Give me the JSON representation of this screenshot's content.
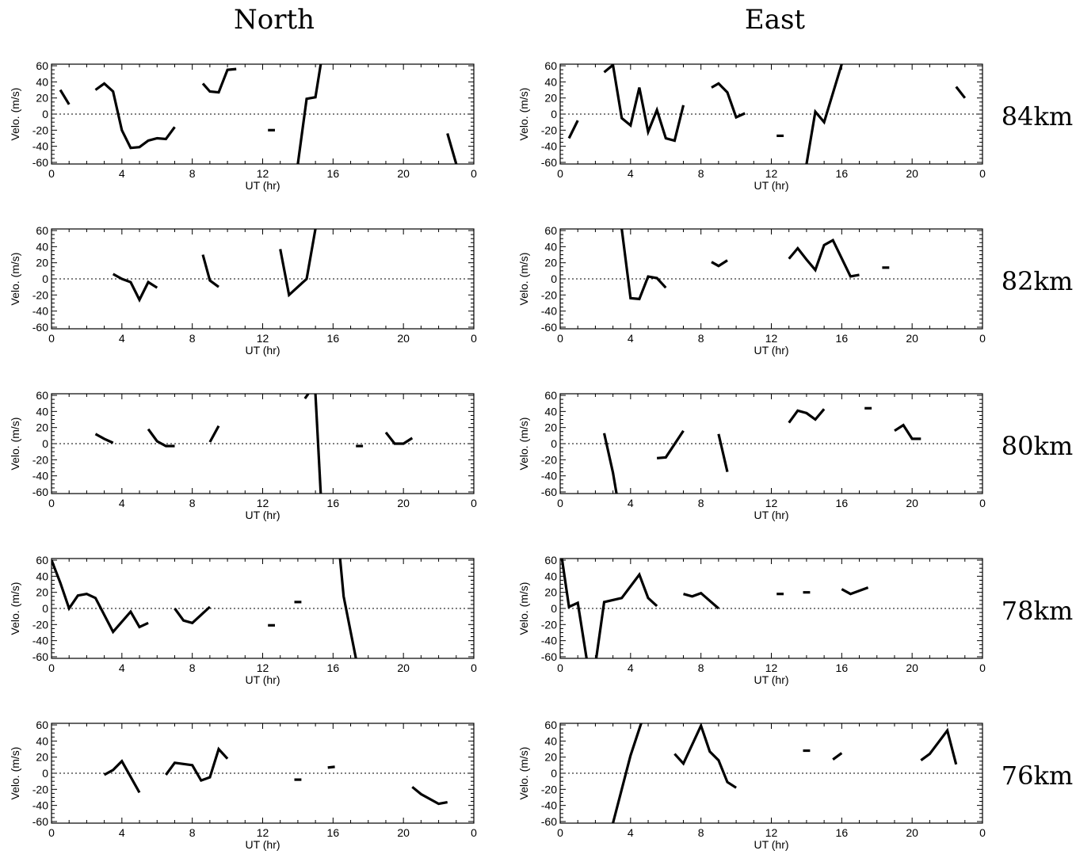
{
  "column_titles": [
    "North",
    "East"
  ],
  "altitude_labels": [
    "84km",
    "82km",
    "80km",
    "78km",
    "76km"
  ],
  "chart_data": [
    {
      "type": "line",
      "column": "North",
      "altitude": "84km",
      "xlabel": "UT (hr)",
      "ylabel": "Velo. (m/s)",
      "xticks": [
        "0",
        "4",
        "8",
        "12",
        "16",
        "20",
        "0"
      ],
      "yticks": [
        "60",
        "40",
        "20",
        "0",
        "-20",
        "-40",
        "-60"
      ],
      "xlim": [
        0,
        24
      ],
      "ylim": [
        -62,
        62
      ],
      "segments": [
        [
          [
            0.5,
            30
          ],
          [
            1,
            12
          ]
        ],
        [
          [
            2.5,
            30
          ],
          [
            3,
            38
          ],
          [
            3.5,
            28
          ],
          [
            4,
            -20
          ],
          [
            4.5,
            -42
          ],
          [
            5,
            -41
          ],
          [
            5.5,
            -33
          ],
          [
            6,
            -30
          ],
          [
            6.5,
            -31
          ],
          [
            7,
            -16
          ]
        ],
        [
          [
            8.6,
            38
          ],
          [
            9,
            28
          ],
          [
            9.5,
            27
          ],
          [
            10,
            55
          ],
          [
            10.5,
            56
          ]
        ],
        [
          [
            12.3,
            -20
          ],
          [
            12.7,
            -20
          ]
        ],
        [
          [
            14,
            -62
          ],
          [
            14.5,
            19
          ],
          [
            15,
            21
          ],
          [
            15.3,
            62
          ]
        ],
        [
          [
            22.5,
            -24
          ],
          [
            23,
            -62
          ]
        ]
      ]
    },
    {
      "type": "line",
      "column": "East",
      "altitude": "84km",
      "xlabel": "UT (hr)",
      "ylabel": "Velo. (m/s)",
      "xticks": [
        "0",
        "4",
        "8",
        "12",
        "16",
        "20",
        "0"
      ],
      "yticks": [
        "60",
        "40",
        "20",
        "0",
        "-20",
        "-40",
        "-60"
      ],
      "xlim": [
        0,
        24
      ],
      "ylim": [
        -62,
        62
      ],
      "segments": [
        [
          [
            0.5,
            -30
          ],
          [
            1,
            -8
          ]
        ],
        [
          [
            2.5,
            52
          ],
          [
            3,
            61
          ],
          [
            3.5,
            -5
          ],
          [
            4,
            -14
          ],
          [
            4.5,
            33
          ],
          [
            5,
            -22
          ],
          [
            5.5,
            5
          ],
          [
            6,
            -30
          ],
          [
            6.5,
            -33
          ],
          [
            7,
            11
          ]
        ],
        [
          [
            8.6,
            33
          ],
          [
            9,
            38
          ],
          [
            9.5,
            27
          ],
          [
            10,
            -4
          ],
          [
            10.5,
            1
          ]
        ],
        [
          [
            12.3,
            -27
          ],
          [
            12.7,
            -27
          ]
        ],
        [
          [
            14,
            -62
          ],
          [
            14.5,
            3
          ],
          [
            15,
            -10
          ],
          [
            16,
            62
          ]
        ],
        [
          [
            22.5,
            34
          ],
          [
            23,
            20
          ]
        ]
      ]
    },
    {
      "type": "line",
      "column": "North",
      "altitude": "82km",
      "xlabel": "UT (hr)",
      "ylabel": "Velo. (m/s)",
      "xticks": [
        "0",
        "4",
        "8",
        "12",
        "16",
        "20",
        "0"
      ],
      "yticks": [
        "60",
        "40",
        "20",
        "0",
        "-20",
        "-40",
        "-60"
      ],
      "xlim": [
        0,
        24
      ],
      "ylim": [
        -62,
        62
      ],
      "segments": [
        [
          [
            3.5,
            6
          ],
          [
            4,
            0
          ],
          [
            4.5,
            -4
          ],
          [
            5,
            -26
          ],
          [
            5.5,
            -4
          ],
          [
            6,
            -11
          ]
        ],
        [
          [
            8.6,
            30
          ],
          [
            9,
            -2
          ],
          [
            9.5,
            -10
          ]
        ],
        [
          [
            13,
            37
          ],
          [
            13.5,
            -20
          ],
          [
            14.5,
            0
          ],
          [
            15,
            62
          ]
        ]
      ]
    },
    {
      "type": "line",
      "column": "East",
      "altitude": "82km",
      "xlabel": "UT (hr)",
      "ylabel": "Velo. (m/s)",
      "xticks": [
        "0",
        "4",
        "8",
        "12",
        "16",
        "20",
        "0"
      ],
      "yticks": [
        "60",
        "40",
        "20",
        "0",
        "-20",
        "-40",
        "-60"
      ],
      "xlim": [
        0,
        24
      ],
      "ylim": [
        -62,
        62
      ],
      "segments": [
        [
          [
            3.5,
            62
          ],
          [
            4,
            -24
          ],
          [
            4.5,
            -25
          ],
          [
            5,
            3
          ],
          [
            5.5,
            1
          ],
          [
            6,
            -11
          ]
        ],
        [
          [
            8.6,
            21
          ],
          [
            9,
            16
          ],
          [
            9.5,
            23
          ]
        ],
        [
          [
            13,
            25
          ],
          [
            13.5,
            38
          ],
          [
            14,
            24
          ],
          [
            14.5,
            11
          ],
          [
            15,
            42
          ],
          [
            15.5,
            48
          ],
          [
            16.5,
            3
          ],
          [
            17,
            5
          ]
        ],
        [
          [
            18.3,
            14
          ],
          [
            18.7,
            14
          ]
        ]
      ]
    },
    {
      "type": "line",
      "column": "North",
      "altitude": "80km",
      "xlabel": "UT (hr)",
      "ylabel": "Velo. (m/s)",
      "xticks": [
        "0",
        "4",
        "8",
        "12",
        "16",
        "20",
        "0"
      ],
      "yticks": [
        "60",
        "40",
        "20",
        "0",
        "-20",
        "-40",
        "-60"
      ],
      "xlim": [
        0,
        24
      ],
      "ylim": [
        -62,
        62
      ],
      "segments": [
        [
          [
            2.5,
            12
          ],
          [
            3,
            6
          ],
          [
            3.5,
            1
          ]
        ],
        [
          [
            5.5,
            18
          ],
          [
            6,
            3
          ],
          [
            6.5,
            -3
          ],
          [
            7,
            -3
          ]
        ],
        [
          [
            9,
            2
          ],
          [
            9.5,
            22
          ]
        ],
        [
          [
            14.4,
            56
          ],
          [
            14.6,
            62
          ]
        ],
        [
          [
            15,
            62
          ],
          [
            15.3,
            -62
          ]
        ],
        [
          [
            17.3,
            -3
          ],
          [
            17.7,
            -3
          ]
        ],
        [
          [
            19,
            14
          ],
          [
            19.5,
            0
          ],
          [
            20,
            0
          ],
          [
            20.5,
            7
          ]
        ]
      ]
    },
    {
      "type": "line",
      "column": "East",
      "altitude": "80km",
      "xlabel": "UT (hr)",
      "ylabel": "Velo. (m/s)",
      "xticks": [
        "0",
        "4",
        "8",
        "12",
        "16",
        "20",
        "0"
      ],
      "yticks": [
        "60",
        "40",
        "20",
        "0",
        "-20",
        "-40",
        "-60"
      ],
      "xlim": [
        0,
        24
      ],
      "ylim": [
        -62,
        62
      ],
      "segments": [
        [
          [
            2.5,
            13
          ],
          [
            3,
            -36
          ],
          [
            3.2,
            -62
          ]
        ],
        [
          [
            5.5,
            -18
          ],
          [
            6,
            -17
          ],
          [
            7,
            16
          ]
        ],
        [
          [
            9,
            12
          ],
          [
            9.5,
            -35
          ]
        ],
        [
          [
            13,
            26
          ],
          [
            13.5,
            41
          ],
          [
            14,
            38
          ],
          [
            14.5,
            30
          ],
          [
            15,
            43
          ]
        ],
        [
          [
            17.3,
            44
          ],
          [
            17.7,
            44
          ]
        ],
        [
          [
            19,
            16
          ],
          [
            19.5,
            23
          ],
          [
            20,
            6
          ],
          [
            20.5,
            6
          ]
        ]
      ]
    },
    {
      "type": "line",
      "column": "North",
      "altitude": "78km",
      "xlabel": "UT (hr)",
      "ylabel": "Velo. (m/s)",
      "xticks": [
        "0",
        "4",
        "8",
        "12",
        "16",
        "20",
        "0"
      ],
      "yticks": [
        "60",
        "40",
        "20",
        "0",
        "-20",
        "-40",
        "-60"
      ],
      "xlim": [
        0,
        24
      ],
      "ylim": [
        -62,
        62
      ],
      "segments": [
        [
          [
            0,
            60
          ],
          [
            0.5,
            32
          ],
          [
            1,
            0
          ],
          [
            1.5,
            16
          ],
          [
            2,
            18
          ],
          [
            2.5,
            13
          ],
          [
            3.5,
            -29
          ],
          [
            4.5,
            -4
          ],
          [
            5,
            -23
          ],
          [
            5.5,
            -18
          ]
        ],
        [
          [
            7,
            0
          ],
          [
            7.5,
            -15
          ],
          [
            8,
            -18
          ],
          [
            9,
            2
          ]
        ],
        [
          [
            12.3,
            -21
          ],
          [
            12.7,
            -21
          ]
        ],
        [
          [
            13.8,
            8
          ],
          [
            14.2,
            8
          ]
        ],
        [
          [
            16.4,
            62
          ],
          [
            16.6,
            15
          ],
          [
            17.3,
            -62
          ]
        ]
      ]
    },
    {
      "type": "line",
      "column": "East",
      "altitude": "78km",
      "xlabel": "UT (hr)",
      "ylabel": "Velo. (m/s)",
      "xticks": [
        "0",
        "4",
        "8",
        "12",
        "16",
        "20",
        "0"
      ],
      "yticks": [
        "60",
        "40",
        "20",
        "0",
        "-20",
        "-40",
        "-60"
      ],
      "xlim": [
        0,
        24
      ],
      "ylim": [
        -62,
        62
      ],
      "segments": [
        [
          [
            0.1,
            62
          ],
          [
            0.5,
            2
          ],
          [
            1,
            7
          ],
          [
            1.5,
            -62
          ]
        ],
        [
          [
            2.05,
            -62
          ],
          [
            2.5,
            8
          ],
          [
            3.5,
            13
          ],
          [
            4.5,
            42
          ],
          [
            5,
            13
          ],
          [
            5.5,
            3
          ]
        ],
        [
          [
            7,
            18
          ],
          [
            7.5,
            15
          ],
          [
            8,
            19
          ],
          [
            9,
            0
          ]
        ],
        [
          [
            12.3,
            18
          ],
          [
            12.7,
            18
          ]
        ],
        [
          [
            13.8,
            20
          ],
          [
            14.2,
            20
          ]
        ],
        [
          [
            16,
            24
          ],
          [
            16.5,
            18
          ],
          [
            17.5,
            26
          ]
        ]
      ]
    },
    {
      "type": "line",
      "column": "North",
      "altitude": "76km",
      "xlabel": "UT (hr)",
      "ylabel": "Velo. (m/s)",
      "xticks": [
        "0",
        "4",
        "8",
        "12",
        "16",
        "20",
        "0"
      ],
      "yticks": [
        "60",
        "40",
        "20",
        "0",
        "-20",
        "-40",
        "-60"
      ],
      "xlim": [
        0,
        24
      ],
      "ylim": [
        -62,
        62
      ],
      "segments": [
        [
          [
            3,
            -2
          ],
          [
            3.5,
            4
          ],
          [
            4,
            15
          ],
          [
            5,
            -24
          ]
        ],
        [
          [
            6.5,
            -2
          ],
          [
            7,
            13
          ],
          [
            8,
            10
          ],
          [
            8.5,
            -9
          ],
          [
            9,
            -5
          ],
          [
            9.5,
            30
          ],
          [
            10,
            18
          ]
        ],
        [
          [
            13.8,
            -8
          ],
          [
            14.2,
            -8
          ]
        ],
        [
          [
            15.7,
            7
          ],
          [
            16.1,
            8
          ]
        ],
        [
          [
            20.5,
            -17
          ],
          [
            21,
            -26
          ],
          [
            22,
            -38
          ],
          [
            22.5,
            -36
          ]
        ]
      ]
    },
    {
      "type": "line",
      "column": "East",
      "altitude": "76km",
      "xlabel": "UT (hr)",
      "ylabel": "Velo. (m/s)",
      "xticks": [
        "0",
        "4",
        "8",
        "12",
        "16",
        "20",
        "0"
      ],
      "yticks": [
        "60",
        "40",
        "20",
        "0",
        "-20",
        "-40",
        "-60"
      ],
      "xlim": [
        0,
        24
      ],
      "ylim": [
        -62,
        62
      ],
      "segments": [
        [
          [
            3,
            -62
          ],
          [
            4,
            22
          ],
          [
            4.6,
            62
          ]
        ],
        [
          [
            6.5,
            24
          ],
          [
            7,
            12
          ],
          [
            8,
            59
          ],
          [
            8.5,
            27
          ],
          [
            9,
            16
          ],
          [
            9.5,
            -11
          ],
          [
            10,
            -18
          ]
        ],
        [
          [
            13.8,
            28
          ],
          [
            14.2,
            28
          ]
        ],
        [
          [
            15.5,
            17
          ],
          [
            16,
            25
          ]
        ],
        [
          [
            20.5,
            16
          ],
          [
            21,
            24
          ],
          [
            22,
            53
          ],
          [
            22.5,
            11
          ]
        ]
      ]
    }
  ]
}
